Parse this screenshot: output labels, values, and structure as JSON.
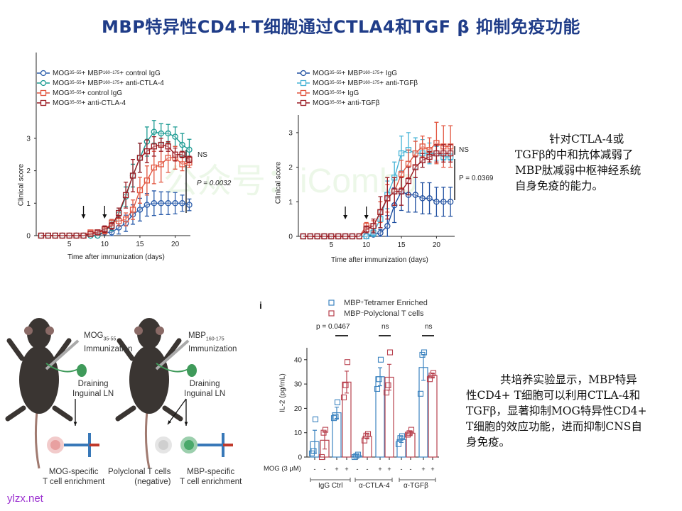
{
  "title": "MBP特异性CD4+T细胞通过CTLA4和TGF β 抑制免疫功能",
  "watermark": "公众号：iCombo",
  "site_label": "ylzx.net",
  "note_top": [
    "针对CTLA-4或",
    "TGFβ的中和抗体减弱了",
    "MBP肽减弱中枢神经系统",
    "自身免疫的能力。"
  ],
  "note_bottom": [
    "共培养实验显示，MBP特异",
    "性CD4+ T细胞可以利用CTLA-4和",
    "TGFβ，显著抑制MOG特异性CD4+",
    "T细胞的效应功能，进而抑制CNS自",
    "身免疫。"
  ],
  "diagram": {
    "left_immunization": [
      "MOG",
      "35-55",
      "Immunization"
    ],
    "right_immunization": [
      "MBP",
      "160-175",
      "Immunization"
    ],
    "draining_ln": [
      "Draining",
      "Inguinal LN"
    ],
    "mog_specific": [
      "MOG-specific",
      "T cell enrichment"
    ],
    "polyclonal": [
      "Polyclonal T cells",
      "(negative)"
    ],
    "mbp_specific": [
      "MBP-specific",
      "T cell enrichment"
    ],
    "colors": {
      "mouse": "#3a3532",
      "ln": "#3f9a5a",
      "mog_cell": "#e8a0a0",
      "poly_cell": "#cfcfcf",
      "mbp_cell": "#4aa86a"
    }
  },
  "chart_data": [
    {
      "type": "line",
      "xlabel": "Time after immunization (days)",
      "ylabel": "Clinical score",
      "xticks": [
        5,
        10,
        15,
        20
      ],
      "yticks": [
        0,
        1,
        2,
        3
      ],
      "xlim": [
        0,
        23
      ],
      "ylim": [
        0,
        3.6
      ],
      "arrows_at_days": [
        7,
        10
      ],
      "annotations": [
        "NS",
        "P = 0.0032"
      ],
      "legend_position": "top-left",
      "x": [
        1,
        2,
        3,
        4,
        5,
        6,
        7,
        8,
        9,
        10,
        11,
        12,
        13,
        14,
        15,
        16,
        17,
        18,
        19,
        20,
        21,
        22
      ],
      "series": [
        {
          "name": [
            "MOG",
            "35–55",
            " + MBP",
            "160–175",
            " + control IgG"
          ],
          "marker": "circle",
          "color": "#2a5caa",
          "values": [
            0,
            0,
            0,
            0,
            0,
            0,
            0,
            0,
            0,
            0.1,
            0.1,
            0.25,
            0.38,
            0.65,
            0.8,
            0.95,
            1.0,
            1.0,
            1.0,
            1.0,
            1.0,
            0.95
          ],
          "errors": [
            0,
            0,
            0,
            0,
            0,
            0,
            0,
            0,
            0,
            0.05,
            0.1,
            0.2,
            0.25,
            0.3,
            0.35,
            0.35,
            0.38,
            0.35,
            0.35,
            0.33,
            0.25,
            0.18
          ]
        },
        {
          "name": [
            "MOG",
            "35–55",
            " + MBP",
            "160–175",
            " + anti-CTLA-4"
          ],
          "marker": "circle",
          "color": "#1a9a92",
          "values": [
            0,
            0,
            0,
            0,
            0,
            0,
            0,
            0,
            0,
            0.15,
            0.3,
            0.65,
            1.2,
            1.85,
            2.4,
            2.9,
            3.2,
            3.15,
            3.15,
            3.05,
            2.8,
            2.65
          ],
          "errors": [
            0,
            0,
            0,
            0,
            0,
            0,
            0,
            0,
            0,
            0.1,
            0.15,
            0.2,
            0.3,
            0.35,
            0.45,
            0.45,
            0.35,
            0.3,
            0.28,
            0.3,
            0.35,
            0.32
          ]
        },
        {
          "name": [
            "MOG",
            "35–55",
            " + control IgG"
          ],
          "marker": "square",
          "color": "#e2553f",
          "values": [
            0,
            0,
            0,
            0,
            0,
            0,
            0,
            0.1,
            0.1,
            0.15,
            0.4,
            0.45,
            0.5,
            0.8,
            1.4,
            1.7,
            2.1,
            2.2,
            2.4,
            2.4,
            2.2,
            2.25
          ],
          "errors": [
            0,
            0,
            0,
            0,
            0,
            0,
            0,
            0.05,
            0.05,
            0.1,
            0.1,
            0.15,
            0.2,
            0.3,
            0.4,
            0.45,
            0.5,
            0.55,
            0.45,
            0.35,
            0.2,
            0.15
          ]
        },
        {
          "name": [
            "MOG",
            "35–55",
            " + anti-CTLA-4"
          ],
          "marker": "square",
          "color": "#9b1c23",
          "values": [
            0,
            0,
            0,
            0,
            0,
            0,
            0,
            0.05,
            0.1,
            0.2,
            0.3,
            0.7,
            1.25,
            1.85,
            2.4,
            2.6,
            2.75,
            2.8,
            2.75,
            2.5,
            2.5,
            2.35
          ],
          "errors": [
            0,
            0,
            0,
            0,
            0,
            0,
            0,
            0,
            0.05,
            0.1,
            0.1,
            0.15,
            0.4,
            0.5,
            0.45,
            0.35,
            0.3,
            0.2,
            0.15,
            0.2,
            0.1,
            0.1
          ]
        }
      ]
    },
    {
      "type": "line",
      "xlabel": "Time after immunization (days)",
      "ylabel": "Clinical score",
      "xticks": [
        5,
        10,
        15,
        20
      ],
      "yticks": [
        0,
        1,
        2,
        3
      ],
      "xlim": [
        0,
        23
      ],
      "ylim": [
        0,
        3.4
      ],
      "arrows_at_days": [
        7,
        10
      ],
      "annotations": [
        "NS",
        "P = 0.0369"
      ],
      "legend_position": "top-left",
      "x": [
        1,
        2,
        3,
        4,
        5,
        6,
        7,
        8,
        9,
        10,
        11,
        12,
        13,
        14,
        15,
        16,
        17,
        18,
        19,
        20,
        21,
        22
      ],
      "series": [
        {
          "name": [
            "MOG",
            "35–55",
            " + MBP",
            "160–175",
            " + IgG"
          ],
          "marker": "circle",
          "color": "#1f4fa0",
          "values": [
            0,
            0,
            0,
            0,
            0,
            0,
            0,
            0,
            0,
            0,
            0.05,
            0.1,
            0.3,
            0.9,
            1.3,
            1.2,
            1.2,
            1.1,
            1.1,
            1.0,
            1.0,
            1.0
          ],
          "errors": [
            0,
            0,
            0,
            0,
            0,
            0,
            0,
            0,
            0,
            0,
            0.05,
            0.1,
            0.3,
            0.5,
            0.55,
            0.5,
            0.5,
            0.45,
            0.45,
            0.42,
            0.42,
            0.42
          ]
        },
        {
          "name": [
            "MOG",
            "35–55",
            " + MBP",
            "160–175",
            " + anti-TGFβ"
          ],
          "marker": "square",
          "color": "#45b3d6",
          "values": [
            0,
            0,
            0,
            0,
            0,
            0,
            0,
            0,
            0,
            0,
            0.1,
            0.5,
            1.2,
            1.7,
            2.4,
            2.5,
            2.4,
            2.4,
            2.4,
            2.4,
            2.3,
            2.3
          ],
          "errors": [
            0,
            0,
            0,
            0,
            0,
            0,
            0,
            0,
            0,
            0,
            0.1,
            0.25,
            0.4,
            0.45,
            0.5,
            0.5,
            0.45,
            0.4,
            0.3,
            0.2,
            0.1,
            0.1
          ]
        },
        {
          "name": [
            "MOG",
            "35–55",
            " + IgG"
          ],
          "marker": "square",
          "color": "#e2553f",
          "values": [
            0,
            0,
            0,
            0,
            0,
            0,
            0,
            0,
            0,
            0.3,
            0.3,
            0.7,
            1.1,
            1.3,
            1.8,
            2.1,
            2.4,
            2.6,
            2.5,
            2.7,
            2.6,
            2.6
          ],
          "errors": [
            0,
            0,
            0,
            0,
            0,
            0,
            0,
            0,
            0,
            0.1,
            0.15,
            0.3,
            0.4,
            0.4,
            0.4,
            0.4,
            0.35,
            0.3,
            0.35,
            0.6,
            0.6,
            0.6
          ]
        },
        {
          "name": [
            "MOG",
            "35–55",
            " + anti-TGFβ"
          ],
          "marker": "square",
          "color": "#9b1c23",
          "values": [
            0,
            0,
            0,
            0,
            0,
            0,
            0,
            0,
            0,
            0.2,
            0.3,
            0.7,
            1.1,
            1.3,
            1.3,
            1.6,
            2.0,
            2.2,
            2.3,
            2.4,
            2.4,
            2.4
          ],
          "errors": [
            0,
            0,
            0,
            0,
            0,
            0,
            0,
            0,
            0,
            0.1,
            0.2,
            0.45,
            0.6,
            0.4,
            0.4,
            0.4,
            0.3,
            0.2,
            0.15,
            0.25,
            0.25,
            0.25
          ]
        }
      ]
    },
    {
      "type": "bar",
      "panel_label": "i",
      "ylabel": "IL-2 (pg/mL)",
      "yticks": [
        0,
        10,
        20,
        30,
        40
      ],
      "ylim": [
        0,
        45
      ],
      "row_label": "MOG (3 μM)",
      "mog": [
        "-",
        "-",
        "+",
        "+",
        "-",
        "-",
        "+",
        "+",
        "-",
        "-",
        "+",
        "+"
      ],
      "groups": [
        "IgG Ctrl",
        "α-CTLA-4",
        "α-TGFβ"
      ],
      "significance": [
        "p = 0.0467",
        "ns",
        "ns"
      ],
      "legend_position": "top",
      "series": [
        {
          "name": [
            "MBP",
            "+",
            " Tetramer Enriched"
          ],
          "color": "#3d84c0",
          "values": [
            6.3,
            18.2,
            0.5,
            33.0,
            7.2,
            36.8
          ],
          "errors": [
            4.7,
            2.3,
            0.5,
            3.7,
            1.2,
            5.3
          ],
          "points": [
            [
              1.5,
              2.5,
              15.5
            ],
            [
              16,
              16.5,
              22.5
            ],
            [
              0,
              0.5,
              1.0
            ],
            [
              28,
              32,
              40
            ],
            [
              5.3,
              7.8,
              8.6
            ],
            [
              26,
              42,
              43
            ]
          ]
        },
        {
          "name": [
            "MBP",
            "−",
            " Polyclonal T cells"
          ],
          "color": "#b8414e",
          "values": [
            6.9,
            30.8,
            8.5,
            32.8,
            9.8,
            33.5
          ],
          "errors": [
            3.6,
            4.5,
            1.0,
            5.3,
            0.7,
            0.8
          ],
          "points": [
            [
              0,
              10,
              11.2
            ],
            [
              24.5,
              29.5,
              39
            ],
            [
              6.8,
              8.8,
              9.5
            ],
            [
              26.5,
              29.5,
              43
            ],
            [
              9.2,
              9.8,
              11.2
            ],
            [
              32,
              33.5,
              34.5
            ]
          ]
        }
      ]
    }
  ]
}
